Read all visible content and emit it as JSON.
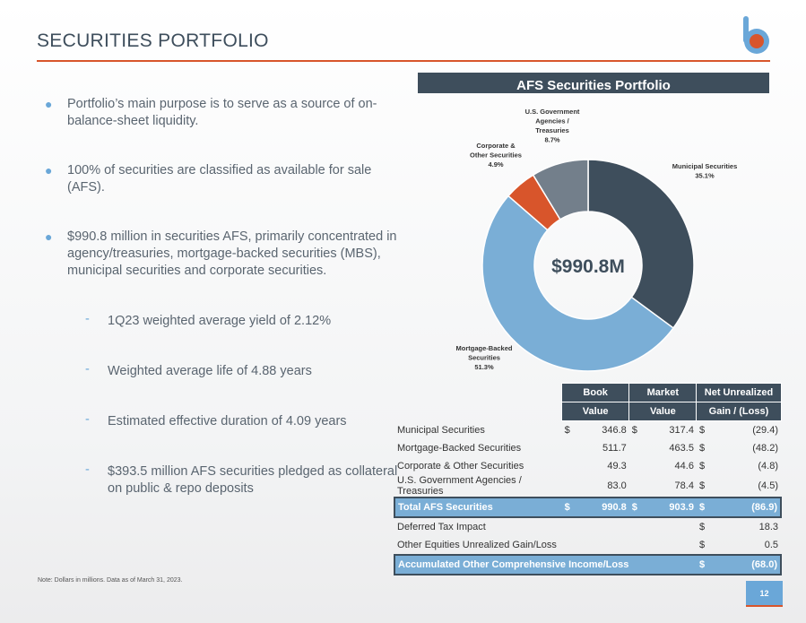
{
  "header": {
    "title": "SECURITIES PORTFOLIO"
  },
  "panel": {
    "title": "AFS Securities Portfolio"
  },
  "bullets": [
    "Portfolio’s main purpose is to serve as a source of on-balance-sheet liquidity.",
    "100% of securities are classified as available for sale (AFS).",
    "$990.8 million in securities AFS, primarily concentrated in agency/treasuries, mortgage-backed securities (MBS), municipal securities and corporate securities."
  ],
  "sub_bullets": [
    "1Q23 weighted average yield of 2.12%",
    "Weighted average life of 4.88 years",
    "Estimated effective duration of 4.09 years",
    "$393.5 million AFS securities pledged as collateral on public & repo deposits"
  ],
  "chart_data": {
    "type": "pie",
    "donut": true,
    "center_label": "$990.8M",
    "slices": [
      {
        "name": "Municipal Securities",
        "value": 35.1,
        "label_lines": [
          "Municipal Securities",
          "35.1%"
        ],
        "color": "#3e4e5c"
      },
      {
        "name": "Mortgage-Backed Securities",
        "value": 51.3,
        "label_lines": [
          "Mortgage-Backed",
          "Securities",
          "51.3%"
        ],
        "color": "#7aaed6"
      },
      {
        "name": "Corporate & Other Securities",
        "value": 4.9,
        "label_lines": [
          "Corporate &",
          "Other Securities",
          "4.9%"
        ],
        "color": "#d8552b"
      },
      {
        "name": "U.S. Government Agencies / Treasuries",
        "value": 8.7,
        "label_lines": [
          "U.S. Government",
          "Agencies /",
          "Treasuries",
          "8.7%"
        ],
        "color": "#737f8b"
      }
    ]
  },
  "table": {
    "headers": {
      "book_1": "Book",
      "book_2": "Value",
      "market_1": "Market",
      "market_2": "Value",
      "gain_1": "Net Unrealized",
      "gain_2": "Gain / (Loss)"
    },
    "currency": "$",
    "rows": [
      {
        "label": "Municipal Securities",
        "book": "346.8",
        "market": "317.4",
        "gain": "(29.4)"
      },
      {
        "label": "Mortgage-Backed Securities",
        "book": "511.7",
        "market": "463.5",
        "gain": "(48.2)"
      },
      {
        "label": "Corporate & Other Securities",
        "book": "49.3",
        "market": "44.6",
        "gain": "(4.8)"
      },
      {
        "label": "U.S. Government Agencies / Treasuries",
        "book": "83.0",
        "market": "78.4",
        "gain": "(4.5)"
      }
    ],
    "total": {
      "label": "Total AFS Securities",
      "book": "990.8",
      "market": "903.9",
      "gain": "(86.9)"
    },
    "deferred": {
      "label": "Deferred Tax Impact",
      "value": "18.3"
    },
    "other": {
      "label": "Other Equities Unrealized Gain/Loss",
      "value": "0.5"
    },
    "aoci": {
      "label": "Accumulated Other Comprehensive Income/Loss",
      "value": "(68.0)"
    }
  },
  "footer": {
    "note": "Note: Dollars in millions. Data as of March 31, 2023.",
    "page": "12"
  },
  "brand": {
    "logo_icon": "b-logo-icon",
    "accent": "#d8552b",
    "primary": "#3e4e5c",
    "light_blue": "#6aa7d8"
  }
}
